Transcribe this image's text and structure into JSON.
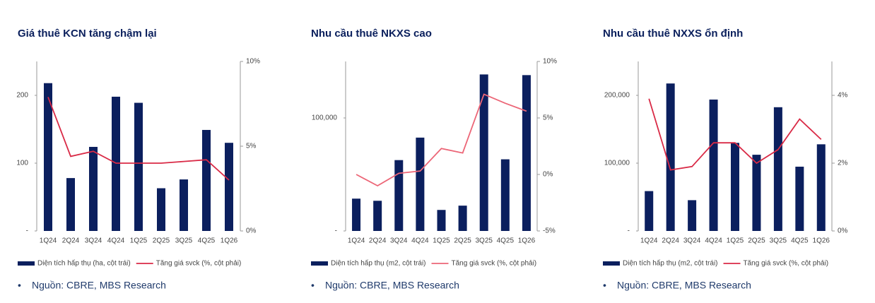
{
  "chart_data": [
    {
      "type": "bar",
      "title": "Giá thuê KCN tăng chậm lại",
      "categories": [
        "1Q24",
        "2Q24",
        "3Q24",
        "4Q24",
        "1Q25",
        "2Q25",
        "3Q25",
        "4Q25",
        "1Q26"
      ],
      "series": [
        {
          "name": "Diện tích hấp thụ (ha, cột trái)",
          "type": "bar",
          "color": "#0b1f5e",
          "values": [
            218,
            78,
            124,
            198,
            189,
            63,
            76,
            149,
            130
          ]
        },
        {
          "name": "Tăng giá svck (%, cột phải)",
          "type": "line",
          "axis": "y2",
          "color": "#d92a46",
          "values": [
            7.9,
            4.4,
            4.7,
            4.0,
            4.0,
            4.0,
            4.1,
            4.2,
            3.0
          ]
        }
      ],
      "ylim": [
        0,
        250
      ],
      "yticks": [
        {
          "value": 0,
          "label": "-"
        },
        100,
        200
      ],
      "y2lim": [
        0,
        10
      ],
      "y2ticks": [
        {
          "value": 0,
          "label": "0%"
        },
        {
          "value": 5,
          "label": "5%"
        },
        {
          "value": 10,
          "label": "10%"
        }
      ],
      "source": "Nguồn: CBRE, MBS Research"
    },
    {
      "type": "bar",
      "title": "Nhu cầu thuê NKXS cao",
      "categories": [
        "1Q24",
        "2Q24",
        "3Q24",
        "4Q24",
        "1Q25",
        "2Q25",
        "3Q25",
        "4Q25",
        "1Q26"
      ],
      "series": [
        {
          "name": "Diện tích hấp thụ (m2, cột trái)",
          "type": "bar",
          "color": "#0b1f5e",
          "values": [
            28600,
            26700,
            62700,
            82600,
            18600,
            22400,
            138500,
            63400,
            137900
          ]
        },
        {
          "name": "Tăng giá svck (%, cột phải)",
          "type": "line",
          "axis": "y2",
          "color": "#ec6677",
          "values": [
            0,
            -1.0,
            0.1,
            0.3,
            2.3,
            1.9,
            7.1,
            6.3,
            5.6
          ]
        }
      ],
      "ylim": [
        0,
        150000
      ],
      "yticks": [
        {
          "value": 0,
          "label": "-"
        },
        {
          "value": 100000,
          "label": "100,000"
        }
      ],
      "y2lim": [
        -5,
        10
      ],
      "y2ticks": [
        {
          "value": -5,
          "label": "-5%"
        },
        {
          "value": 0,
          "label": "0%"
        },
        {
          "value": 5,
          "label": "5%"
        },
        {
          "value": 10,
          "label": "10%"
        }
      ],
      "source": "Nguồn: CBRE, MBS Research"
    },
    {
      "type": "bar",
      "title": "Nhu cầu thuê NXXS ổn định",
      "categories": [
        "1Q24",
        "2Q24",
        "3Q24",
        "4Q24",
        "1Q25",
        "2Q25",
        "3Q25",
        "4Q25",
        "1Q26"
      ],
      "series": [
        {
          "name": "Diện tích hấp thụ (m2, cột trái)",
          "type": "bar",
          "color": "#0b1f5e",
          "values": [
            58800,
            217500,
            45400,
            193800,
            129900,
            112400,
            182500,
            94800,
            127800
          ]
        },
        {
          "name": "Tăng giá svck (%, cột phải)",
          "type": "line",
          "axis": "y2",
          "color": "#d92a46",
          "values": [
            3.9,
            1.8,
            1.9,
            2.6,
            2.6,
            2.0,
            2.4,
            3.3,
            2.7
          ]
        }
      ],
      "ylim": [
        0,
        250000
      ],
      "yticks": [
        {
          "value": 0,
          "label": "-"
        },
        {
          "value": 100000,
          "label": "100,000"
        },
        {
          "value": 200000,
          "label": "200,000"
        }
      ],
      "y2lim": [
        0,
        5
      ],
      "y2ticks": [
        {
          "value": 0,
          "label": "0%"
        },
        {
          "value": 2,
          "label": "2%"
        },
        {
          "value": 4,
          "label": "4%"
        }
      ],
      "source": "Nguồn: CBRE, MBS Research"
    }
  ]
}
